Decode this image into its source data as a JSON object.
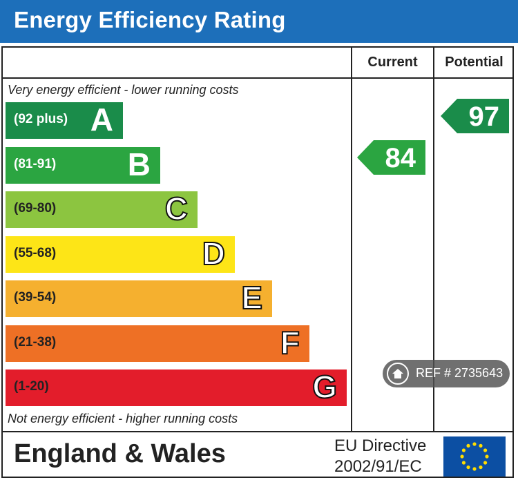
{
  "header": {
    "title": "Energy Efficiency Rating"
  },
  "columns": {
    "current": "Current",
    "potential": "Potential"
  },
  "notes": {
    "top": "Very energy efficient - lower running costs",
    "bottom": "Not energy efficient - higher running costs"
  },
  "chart_data": {
    "type": "bar",
    "title": "Energy Efficiency Rating",
    "categories": [
      "A",
      "B",
      "C",
      "D",
      "E",
      "F",
      "G"
    ],
    "bands": [
      {
        "letter": "A",
        "range": "(92 plus)",
        "min": 92,
        "max": 100,
        "color": "#1a8c4a",
        "range_color": "#ffffff",
        "letter_outline": false
      },
      {
        "letter": "B",
        "range": "(81-91)",
        "min": 81,
        "max": 91,
        "color": "#2ba541",
        "range_color": "#ffffff",
        "letter_outline": false
      },
      {
        "letter": "C",
        "range": "(69-80)",
        "min": 69,
        "max": 80,
        "color": "#8cc540",
        "range_color": "#222222",
        "letter_outline": true
      },
      {
        "letter": "D",
        "range": "(55-68)",
        "min": 55,
        "max": 68,
        "color": "#fde517",
        "range_color": "#222222",
        "letter_outline": true
      },
      {
        "letter": "E",
        "range": "(39-54)",
        "min": 39,
        "max": 54,
        "color": "#f5b02f",
        "range_color": "#222222",
        "letter_outline": true
      },
      {
        "letter": "F",
        "range": "(21-38)",
        "min": 21,
        "max": 38,
        "color": "#ee7025",
        "range_color": "#222222",
        "letter_outline": true
      },
      {
        "letter": "G",
        "range": "(1-20)",
        "min": 1,
        "max": 20,
        "color": "#e31d2b",
        "range_color": "#222222",
        "letter_outline": true
      }
    ],
    "series": [
      {
        "name": "Current",
        "value": 84,
        "band": "B",
        "color": "#2ba541"
      },
      {
        "name": "Potential",
        "value": 97,
        "band": "A",
        "color": "#1a8c4a"
      }
    ]
  },
  "footer": {
    "region": "England & Wales",
    "directive_line1": "EU Directive",
    "directive_line2": "2002/91/EC",
    "flag_icon": "eu-flag-icon"
  },
  "watermark": {
    "ref_text": "REF # 2735643",
    "icon": "home-icon"
  }
}
